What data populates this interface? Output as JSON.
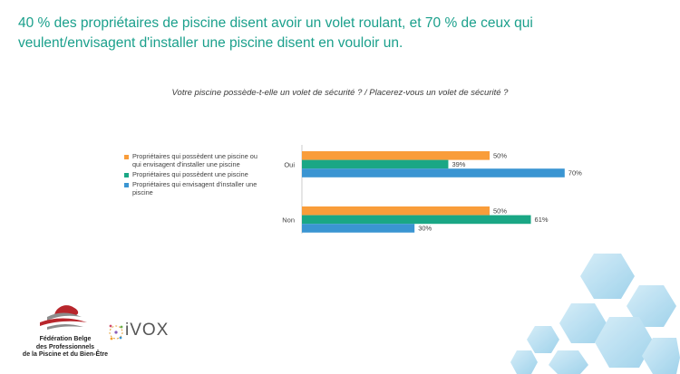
{
  "headline": "40 % des propriétaires de piscine disent avoir un volet roulant, et 70 % de ceux qui veulent/envisagent d'installer une piscine disent en vouloir un.",
  "question": "Votre piscine possède-t-elle un volet de sécurité ? / Placerez-vous un volet de sécurité ?",
  "colors": {
    "headline": "#1ba08c",
    "orange": "#f99d3a",
    "green": "#1aa785",
    "blue": "#3a95d2"
  },
  "chart_data": {
    "type": "bar",
    "orientation": "horizontal",
    "categories": [
      "Oui",
      "Non"
    ],
    "series": [
      {
        "name": "Propriétaires qui possèdent une piscine ou qui envisagent d'installer une piscine",
        "values": [
          50,
          50
        ],
        "labels": [
          "50%",
          "50%"
        ],
        "color": "#f99d3a"
      },
      {
        "name": "Propriétaires qui possèdent une piscine",
        "values": [
          39,
          61
        ],
        "labels": [
          "39%",
          "61%"
        ],
        "color": "#1aa785"
      },
      {
        "name": "Propriétaires qui envisagent d'installer une piscine",
        "values": [
          70,
          30
        ],
        "labels": [
          "70%",
          "30%"
        ],
        "color": "#3a95d2"
      }
    ],
    "xlim": [
      0,
      100
    ],
    "legend": "left",
    "grid": false
  },
  "logos": {
    "fbp": "Fédération Belge des Professionnels de la Piscine et du Bien-Être",
    "fbp_lines": [
      "Fédération Belge",
      "des Professionnels",
      "de la Piscine et du Bien-Être"
    ],
    "ivox": "iVOX"
  }
}
